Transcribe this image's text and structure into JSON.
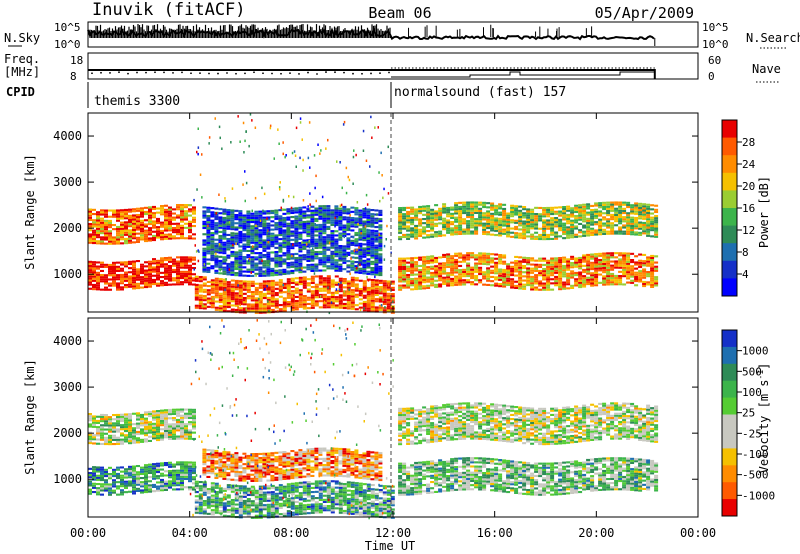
{
  "header": {
    "station": "Inuvik (fitACF)",
    "beam": "Beam 06",
    "date": "05/Apr/2009"
  },
  "nsky_panel": {
    "left_label": "N.Sky",
    "right_label": "N.Search",
    "left_ticks": [
      "10^5",
      "10^0"
    ],
    "right_ticks": [
      "10^5",
      "10^0"
    ]
  },
  "freq_panel": {
    "left_label_1": "Freq.",
    "left_label_2": "[MHz]",
    "right_label": "Nave",
    "left_ticks": [
      "18",
      "8"
    ],
    "right_ticks": [
      "60",
      "0"
    ]
  },
  "cpid": {
    "label": "CPID",
    "segments": [
      {
        "name": "themis 3300",
        "start_hour": 0
      },
      {
        "name": "normalsound (fast) 157",
        "start_hour": 12
      }
    ]
  },
  "time_axis": {
    "label": "Time UT",
    "ticks": [
      "00:00",
      "04:00",
      "08:00",
      "12:00",
      "16:00",
      "20:00",
      "00:00"
    ]
  },
  "chart_data": [
    {
      "type": "heatmap",
      "title": "",
      "xlabel": "Time UT",
      "ylabel": "Slant Range [km]",
      "xlim_hours": [
        0,
        24
      ],
      "ylim_km": [
        180,
        4500
      ],
      "yticks": [
        "1000",
        "2000",
        "3000",
        "4000"
      ],
      "colorbar_label": "Power [dB]",
      "colorbar_ticks": [
        "28",
        "24",
        "20",
        "16",
        "12",
        "8",
        "4"
      ],
      "colorbar_colors": [
        "#e80000",
        "#ff5a00",
        "#ff8c00",
        "#f5c000",
        "#9acd32",
        "#3cb44b",
        "#2e8b57",
        "#1e6fb0",
        "#1530c8",
        "#0000ff"
      ],
      "bands": [
        {
          "t0": 0.0,
          "t1": 4.2,
          "r0": 700,
          "r1": 1300,
          "level": 0.95
        },
        {
          "t0": 0.0,
          "t1": 4.2,
          "r0": 1700,
          "r1": 2450,
          "level": 0.8
        },
        {
          "t0": 4.2,
          "t1": 12.0,
          "r0": 200,
          "r1": 900,
          "level": 0.85
        },
        {
          "t0": 4.5,
          "t1": 11.5,
          "r0": 1000,
          "r1": 2400,
          "level": 0.2
        },
        {
          "t0": 12.2,
          "t1": 22.3,
          "r0": 700,
          "r1": 1400,
          "level": 0.75
        },
        {
          "t0": 12.2,
          "t1": 22.3,
          "r0": 1800,
          "r1": 2500,
          "level": 0.55
        }
      ]
    },
    {
      "type": "heatmap",
      "title": "",
      "xlabel": "Time UT",
      "ylabel": "Slant Range [km]",
      "xlim_hours": [
        0,
        24
      ],
      "ylim_km": [
        180,
        4500
      ],
      "yticks": [
        "1000",
        "2000",
        "3000",
        "4000"
      ],
      "colorbar_label": "Velocity [m s^-1]",
      "colorbar_ticks": [
        "1000",
        "500",
        "100",
        "25",
        "-25",
        "-100",
        "-500",
        "-1000"
      ],
      "colorbar_colors": [
        "#1530c8",
        "#1e6fb0",
        "#2e8b57",
        "#3cb44b",
        "#55cc33",
        "#c8c8c0",
        "#c8c8c0",
        "#f5c000",
        "#ff8c00",
        "#ff5a00",
        "#e80000"
      ],
      "bands": [
        {
          "t0": 0.0,
          "t1": 4.2,
          "r0": 700,
          "r1": 1300,
          "level": 0.75
        },
        {
          "t0": 0.0,
          "t1": 4.2,
          "r0": 1800,
          "r1": 2450,
          "level": 0.5
        },
        {
          "t0": 4.2,
          "t1": 12.0,
          "r0": 200,
          "r1": 900,
          "level": 0.7
        },
        {
          "t0": 4.5,
          "t1": 11.5,
          "r0": 1000,
          "r1": 1600,
          "level": 0.25
        },
        {
          "t0": 12.2,
          "t1": 22.3,
          "r0": 700,
          "r1": 1400,
          "level": 0.6
        },
        {
          "t0": 12.2,
          "t1": 22.3,
          "r0": 1800,
          "r1": 2600,
          "level": 0.5
        }
      ]
    }
  ]
}
